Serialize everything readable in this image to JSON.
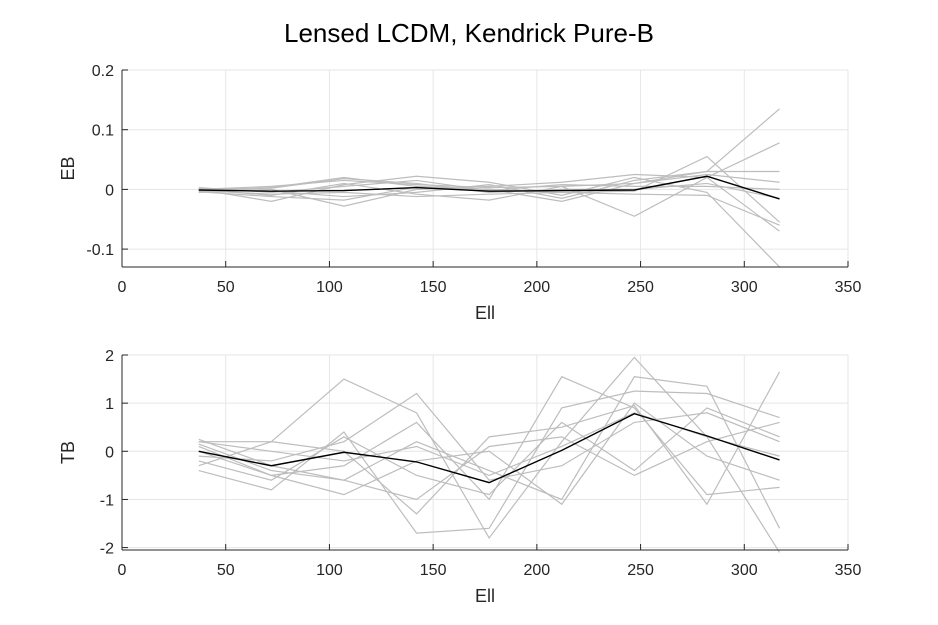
{
  "title": "Lensed LCDM, Kendrick Pure-B",
  "colors": {
    "realization": "#bdbdbd",
    "mean": "#000000",
    "grid": "#e6e6e6",
    "axis": "#262626"
  },
  "chart_data": [
    {
      "type": "line",
      "xlabel": "Ell",
      "ylabel": "EB",
      "xlim": [
        0,
        350
      ],
      "ylim": [
        -0.13,
        0.2
      ],
      "xticks": [
        0,
        50,
        100,
        150,
        200,
        250,
        300,
        350
      ],
      "yticks": [
        -0.1,
        0,
        0.1,
        0.2
      ],
      "ytick_labels": [
        "-0.1",
        "0",
        "0.1",
        "0.2"
      ],
      "grid": true,
      "x": [
        37,
        72,
        107,
        142,
        177,
        212,
        247,
        282,
        317
      ],
      "realizations": [
        [
          0.0,
          0.005,
          0.015,
          0.008,
          0.003,
          0.005,
          0.01,
          0.03,
          0.135
        ],
        [
          -0.003,
          0.003,
          0.02,
          0.005,
          0.0,
          -0.005,
          -0.003,
          0.055,
          -0.055
        ],
        [
          0.0,
          -0.02,
          0.008,
          0.022,
          0.012,
          -0.01,
          0.02,
          -0.005,
          -0.13
        ],
        [
          -0.005,
          0.0,
          -0.028,
          0.0,
          0.005,
          0.012,
          0.025,
          0.02,
          0.078
        ],
        [
          0.0,
          -0.01,
          0.01,
          -0.008,
          -0.018,
          0.005,
          -0.045,
          0.02,
          -0.07
        ],
        [
          0.002,
          -0.003,
          -0.012,
          -0.005,
          0.008,
          -0.015,
          0.015,
          0.03,
          0.03
        ],
        [
          0.0,
          0.002,
          0.018,
          0.01,
          -0.005,
          0.0,
          0.0,
          0.01,
          -0.015
        ],
        [
          -0.002,
          -0.008,
          -0.005,
          -0.012,
          -0.008,
          -0.005,
          -0.008,
          -0.01,
          -0.06
        ],
        [
          0.003,
          -0.005,
          0.005,
          0.015,
          -0.002,
          0.008,
          0.005,
          0.005,
          0.0
        ],
        [
          -0.004,
          -0.012,
          -0.018,
          0.004,
          0.0,
          -0.02,
          0.01,
          0.025,
          0.012
        ]
      ],
      "mean": [
        -0.001,
        -0.003,
        -0.002,
        0.003,
        -0.003,
        -0.002,
        -0.001,
        0.022,
        -0.016
      ]
    },
    {
      "type": "line",
      "xlabel": "Ell",
      "ylabel": "TB",
      "xlim": [
        0,
        350
      ],
      "ylim": [
        -2.05,
        2.0
      ],
      "xticks": [
        0,
        50,
        100,
        150,
        200,
        250,
        300,
        350
      ],
      "yticks": [
        -2,
        -1,
        0,
        1,
        2
      ],
      "ytick_labels": [
        "-2",
        "-1",
        "0",
        "1",
        "2"
      ],
      "grid": true,
      "x": [
        37,
        72,
        107,
        142,
        177,
        212,
        247,
        282,
        317
      ],
      "realizations": [
        [
          0.2,
          0.2,
          1.5,
          0.8,
          -1.8,
          0.2,
          1.95,
          0.3,
          -2.1
        ],
        [
          -0.3,
          0.2,
          0.0,
          -1.3,
          0.3,
          0.5,
          0.95,
          -1.1,
          1.65
        ],
        [
          0.1,
          -0.5,
          -0.3,
          0.6,
          -1.0,
          1.55,
          0.9,
          -0.9,
          -0.75
        ],
        [
          0.25,
          -0.3,
          -0.6,
          0.2,
          -0.4,
          -1.0,
          1.55,
          1.35,
          -1.6
        ],
        [
          -0.4,
          -0.8,
          0.4,
          -1.7,
          -1.6,
          0.9,
          1.25,
          1.2,
          0.7
        ],
        [
          0.15,
          -0.4,
          -0.6,
          -1.0,
          0.1,
          0.3,
          -0.5,
          0.2,
          0.6
        ],
        [
          -0.1,
          -0.2,
          0.2,
          1.2,
          -0.6,
          -0.3,
          0.6,
          0.8,
          0.2
        ],
        [
          0.0,
          -0.5,
          -0.9,
          -0.2,
          0.0,
          -1.1,
          1.0,
          -0.1,
          -0.6
        ],
        [
          0.2,
          0.0,
          -0.2,
          0.1,
          -0.5,
          0.1,
          0.8,
          0.3,
          -0.1
        ],
        [
          -0.2,
          -0.6,
          0.3,
          -0.5,
          -0.9,
          0.6,
          -0.4,
          0.9,
          0.3
        ]
      ],
      "mean": [
        0.0,
        -0.3,
        -0.02,
        -0.22,
        -0.65,
        0.02,
        0.78,
        0.32,
        -0.18
      ]
    }
  ]
}
